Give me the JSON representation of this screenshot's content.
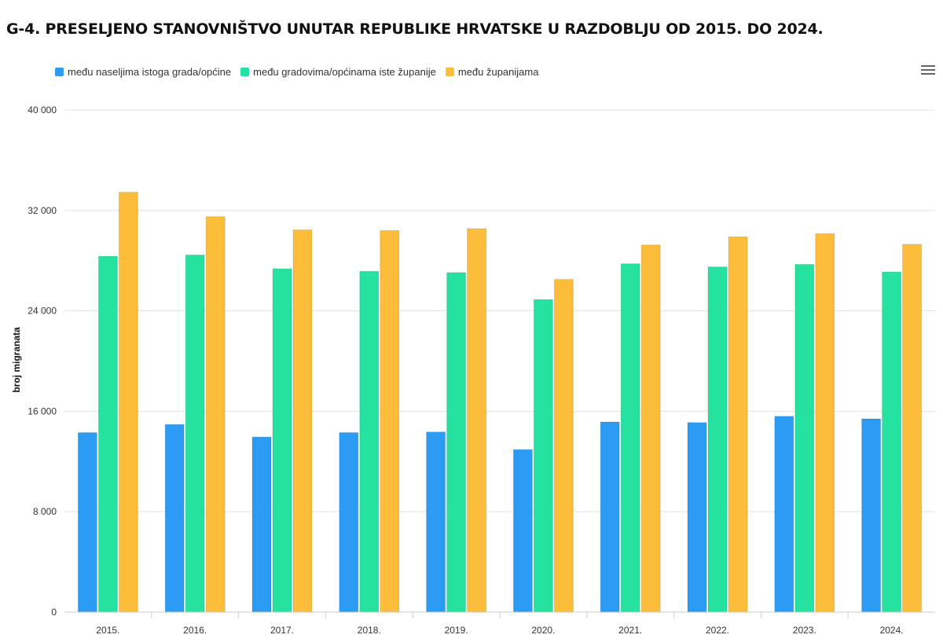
{
  "chart_data": {
    "type": "bar",
    "title": "G-4. PRESELJENO STANOVNIŠTVO UNUTAR REPUBLIKE HRVATSKE U RAZDOBLJU OD 2015. DO 2024.",
    "ylabel": "broj migranata",
    "xlabel": "",
    "ylim": [
      0,
      40000
    ],
    "yticks": [
      0,
      8000,
      16000,
      24000,
      32000,
      40000
    ],
    "ytick_labels": [
      "0",
      "8 000",
      "16 000",
      "24 000",
      "32 000",
      "40 000"
    ],
    "categories": [
      "2015.",
      "2016.",
      "2017.",
      "2018.",
      "2019.",
      "2020.",
      "2021.",
      "2022.",
      "2023.",
      "2024."
    ],
    "series": [
      {
        "name": "među naseljima istoga grada/općine",
        "color": "#2b9bf4",
        "values": [
          14300,
          14950,
          13950,
          14300,
          14350,
          12950,
          15150,
          15100,
          15600,
          15400
        ]
      },
      {
        "name": "među gradovima/općinama iste županije",
        "color": "#26e2a0",
        "values": [
          28350,
          28450,
          27350,
          27150,
          27050,
          24900,
          27750,
          27500,
          27700,
          27100
        ]
      },
      {
        "name": "među županijama",
        "color": "#fbbd3a",
        "values": [
          33450,
          31500,
          30450,
          30400,
          30550,
          26500,
          29250,
          29900,
          30150,
          29300
        ]
      }
    ],
    "grid": true,
    "legend_position": "top-left"
  },
  "icons": {
    "menu": "hamburger-menu-icon"
  }
}
